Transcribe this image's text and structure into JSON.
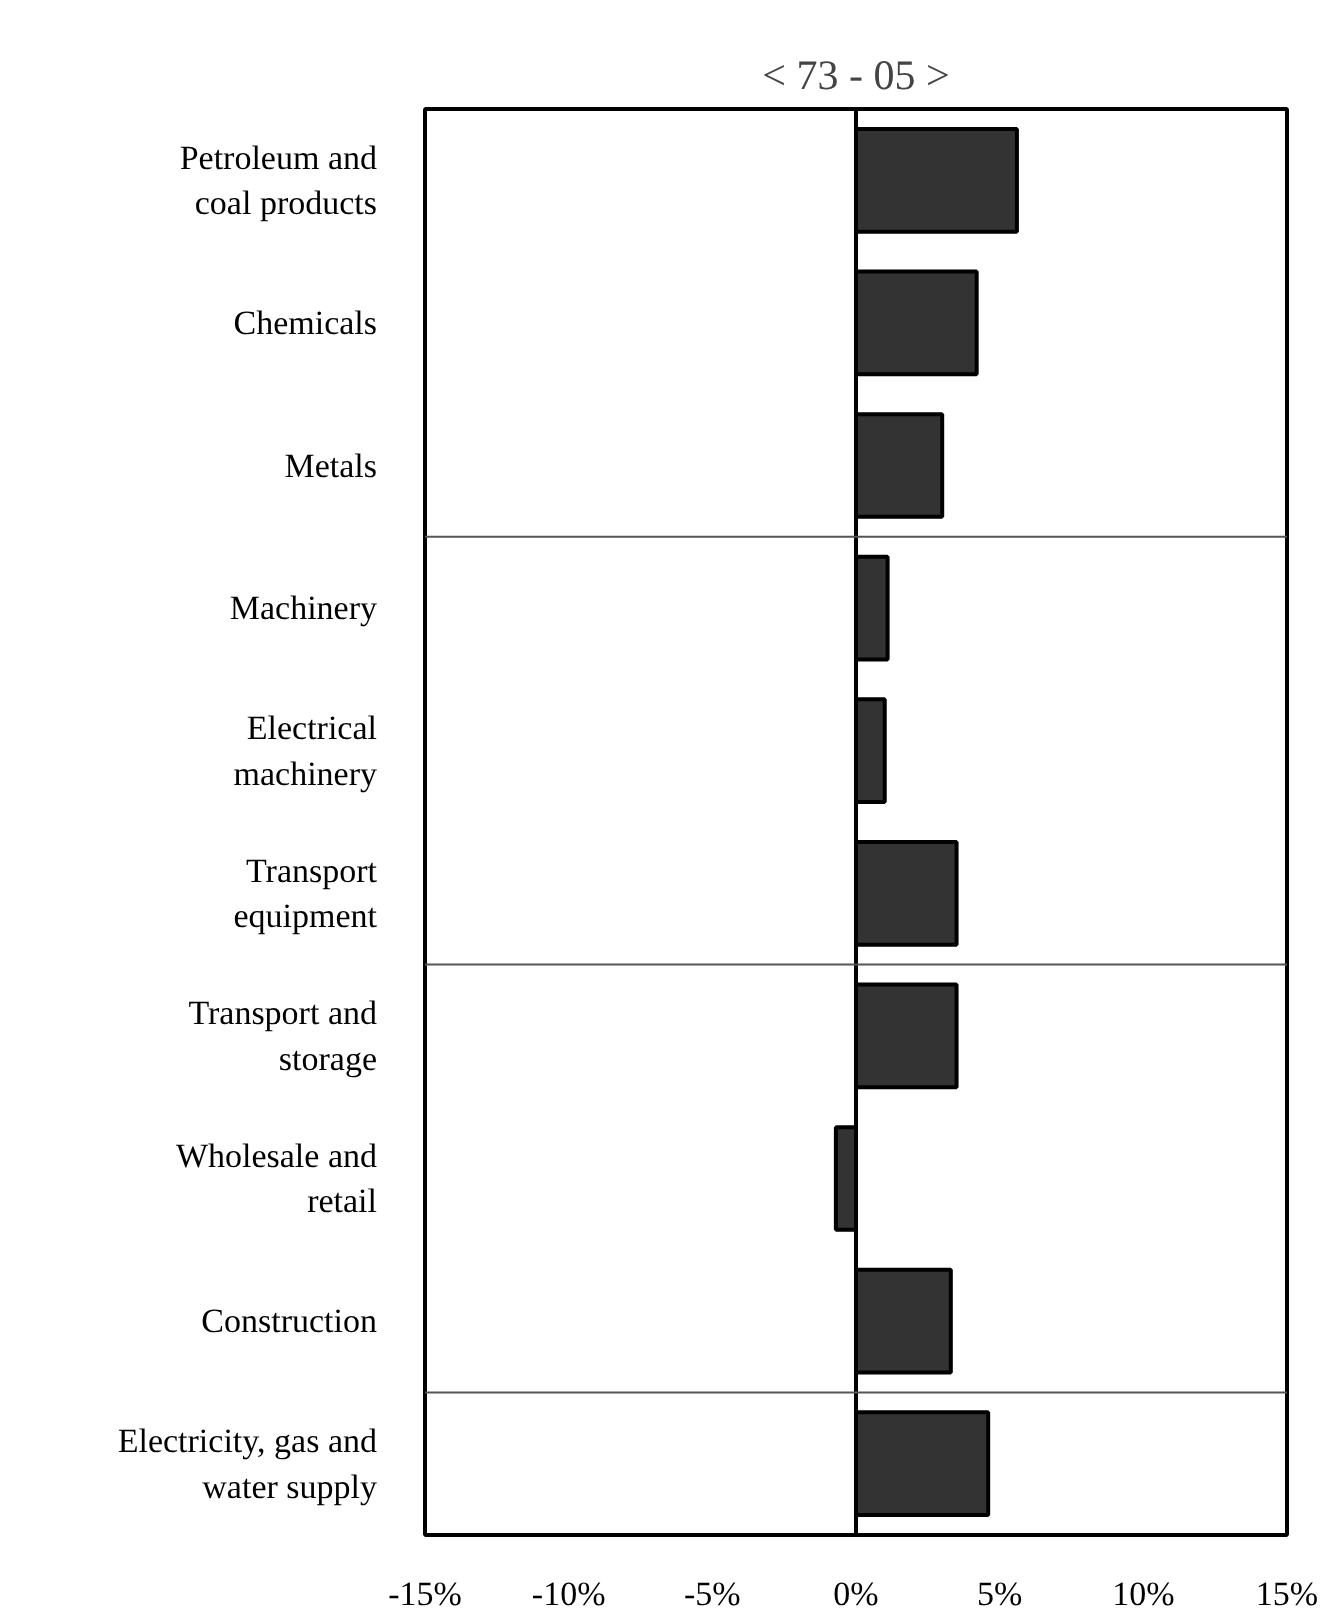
{
  "chart_data": {
    "type": "bar",
    "orientation": "horizontal",
    "subtitle": "< 73 - 05 >",
    "categories": [
      "Petroleum and\ncoal products",
      "Chemicals",
      "Metals",
      "Machinery",
      "Electrical\nmachinery",
      "Transport\nequipment",
      "Transport and\nstorage",
      "Wholesale and\nretail",
      "Construction",
      "Electricity, gas and\nwater supply"
    ],
    "values": [
      5.6,
      4.2,
      3.0,
      1.1,
      1.0,
      3.5,
      3.5,
      -0.7,
      3.3,
      4.6
    ],
    "color": "#333333",
    "xlim": [
      -15,
      15
    ],
    "xticks": [
      {
        "value": -15,
        "label": "-15%"
      },
      {
        "value": -10,
        "label": "-10%"
      },
      {
        "value": -5,
        "label": "-5%"
      },
      {
        "value": 0,
        "label": "0%"
      },
      {
        "value": 5,
        "label": "5%"
      },
      {
        "value": 10,
        "label": "10%"
      },
      {
        "value": 15,
        "label": "15%"
      }
    ],
    "ref_lines": [
      {
        "axis": "x",
        "value": 0,
        "color": "#000000"
      }
    ],
    "grid": false
  }
}
